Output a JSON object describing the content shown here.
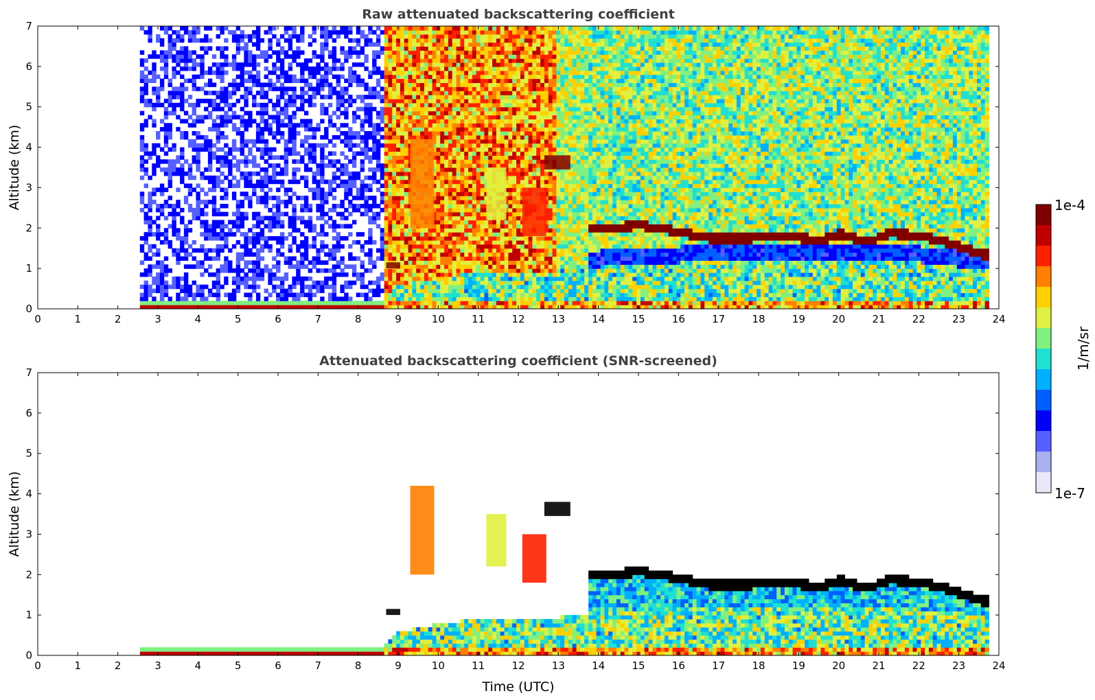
{
  "chart_data": [
    {
      "type": "heatmap",
      "title": "Raw attenuated backscattering coefficient",
      "xlabel": "",
      "ylabel": "Altitude (km)",
      "xlim": [
        0,
        24
      ],
      "ylim": [
        0,
        7
      ],
      "xticks": [
        "0",
        "1",
        "2",
        "3",
        "4",
        "5",
        "6",
        "7",
        "8",
        "9",
        "10",
        "11",
        "12",
        "13",
        "14",
        "15",
        "16",
        "17",
        "18",
        "19",
        "20",
        "21",
        "22",
        "23",
        "24"
      ],
      "yticks": [
        "0",
        "1",
        "2",
        "3",
        "4",
        "5",
        "6",
        "7"
      ],
      "data_start_hour": 2.55,
      "data_end_hour": 23.75,
      "screened": false,
      "cloud_base_km": [
        {
          "t": 13.7,
          "z": 1.8
        },
        {
          "t": 14.3,
          "z": 1.85
        },
        {
          "t": 15.0,
          "z": 1.92
        },
        {
          "t": 16.0,
          "z": 1.75
        },
        {
          "t": 16.7,
          "z": 1.6
        },
        {
          "t": 17.5,
          "z": 1.58
        },
        {
          "t": 18.5,
          "z": 1.65
        },
        {
          "t": 19.5,
          "z": 1.55
        },
        {
          "t": 20.0,
          "z": 1.7
        },
        {
          "t": 20.7,
          "z": 1.5
        },
        {
          "t": 21.2,
          "z": 1.72
        },
        {
          "t": 22.0,
          "z": 1.65
        },
        {
          "t": 22.8,
          "z": 1.45
        },
        {
          "t": 23.5,
          "z": 1.2
        }
      ],
      "boundary_layer_top_km": [
        {
          "t": 2.55,
          "z": 0.15
        },
        {
          "t": 8.5,
          "z": 0.15
        },
        {
          "t": 9.0,
          "z": 0.55
        },
        {
          "t": 10.0,
          "z": 0.75
        },
        {
          "t": 11.0,
          "z": 0.85
        },
        {
          "t": 12.0,
          "z": 0.8
        },
        {
          "t": 13.0,
          "z": 0.9
        },
        {
          "t": 14.0,
          "z": 1.0
        },
        {
          "t": 16.0,
          "z": 1.1
        },
        {
          "t": 18.0,
          "z": 1.15
        },
        {
          "t": 20.0,
          "z": 1.2
        },
        {
          "t": 22.0,
          "z": 1.1
        },
        {
          "t": 23.75,
          "z": 0.9
        }
      ],
      "elevated_layers": [
        {
          "t0": 12.65,
          "t1": 13.3,
          "z0": 3.45,
          "z1": 3.8,
          "level": 1.0
        },
        {
          "t0": 8.7,
          "t1": 9.05,
          "z0": 1.0,
          "z1": 1.15,
          "level": 1.0
        },
        {
          "t0": 9.3,
          "t1": 9.9,
          "z0": 2.0,
          "z1": 4.2,
          "level": 0.75
        },
        {
          "t0": 11.2,
          "t1": 11.7,
          "z0": 2.2,
          "z1": 3.5,
          "level": 0.6
        },
        {
          "t0": 12.1,
          "t1": 12.7,
          "z0": 1.8,
          "z1": 3.0,
          "level": 0.8
        }
      ]
    },
    {
      "type": "heatmap",
      "title": "Attenuated backscattering coefficient (SNR-screened)",
      "xlabel": "Time (UTC)",
      "ylabel": "Altitude (km)",
      "xlim": [
        0,
        24
      ],
      "ylim": [
        0,
        7
      ],
      "xticks": [
        "0",
        "1",
        "2",
        "3",
        "4",
        "5",
        "6",
        "7",
        "8",
        "9",
        "10",
        "11",
        "12",
        "13",
        "14",
        "15",
        "16",
        "17",
        "18",
        "19",
        "20",
        "21",
        "22",
        "23",
        "24"
      ],
      "yticks": [
        "0",
        "1",
        "2",
        "3",
        "4",
        "5",
        "6",
        "7"
      ],
      "data_start_hour": 2.55,
      "data_end_hour": 23.75,
      "screened": true
    }
  ],
  "colorbar": {
    "label": "1/m/sr",
    "min_label": "1e-7",
    "max_label": "1e-4",
    "colors": [
      "#e8e8f8",
      "#aab0f0",
      "#5560ff",
      "#0000ff",
      "#0060ff",
      "#00b0ff",
      "#20e0d0",
      "#80f080",
      "#e0f040",
      "#ffd000",
      "#ff8000",
      "#ff2000",
      "#c00000",
      "#800000"
    ]
  }
}
